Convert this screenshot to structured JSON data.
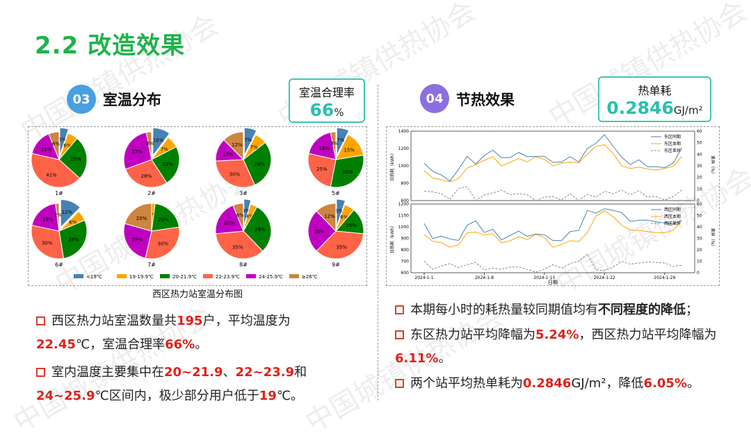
{
  "title": "2.2 改造效果",
  "watermark": "中国城镇供热协会",
  "left": {
    "badge": "03",
    "heading": "室温分布",
    "kpi": {
      "label": "室温合理率",
      "value": "66",
      "unit": "%"
    },
    "caption": "西区热力站室温分布图",
    "bullets": [
      {
        "parts": [
          [
            "西区热力站室温数量共",
            0
          ],
          [
            "195",
            1
          ],
          [
            "户，平均温度为",
            0
          ],
          [
            "22.45",
            1
          ],
          [
            "℃，室温合理率",
            0
          ],
          [
            "66%",
            1
          ],
          [
            "。",
            0
          ]
        ]
      },
      {
        "parts": [
          [
            "室内温度主要集中在",
            0
          ],
          [
            "20~21.9",
            1
          ],
          [
            "、",
            0
          ],
          [
            "22~23.9",
            1
          ],
          [
            "和",
            0
          ],
          [
            "24~25.9",
            1
          ],
          [
            "℃区间内，极少部分用户低于",
            0
          ],
          [
            "19",
            1
          ],
          [
            "℃。",
            0
          ]
        ]
      }
    ]
  },
  "right": {
    "badge": "04",
    "heading": "节热效果",
    "kpi": {
      "label": "热单耗",
      "value": "0.2846",
      "unit": "GJ/m²"
    },
    "bullets": [
      {
        "parts": [
          [
            "本期每小时的耗热量较同期值均有",
            0
          ],
          [
            "不同程度的降低",
            2
          ],
          [
            "；",
            0
          ]
        ]
      },
      {
        "parts": [
          [
            "东区热力站平均降幅为",
            0
          ],
          [
            "5.24%",
            1
          ],
          [
            "，西区热力站平均降幅为",
            0
          ],
          [
            "6.11%",
            1
          ],
          [
            "。",
            0
          ]
        ]
      },
      {
        "parts": [
          [
            "两个站平均热单耗为",
            0
          ],
          [
            "0.2846",
            1
          ],
          [
            "GJ/m²，降低",
            0
          ],
          [
            "6.05%",
            1
          ],
          [
            "。",
            0
          ]
        ]
      }
    ]
  },
  "colors": {
    "accent": "#1fb24a",
    "badge03": "#4a9fe0",
    "badge04": "#8b6fe0",
    "kpi": "#2bbfae",
    "red": "#e0201a"
  },
  "chart_data": [
    {
      "type": "pie",
      "title": "西区热力站室温分布图",
      "legend": [
        "<19℃",
        "19-19.9℃",
        "20-21.9℃",
        "22-23.9℃",
        "24-25.9℃",
        "≥26℃"
      ],
      "colors": [
        "#4682b4",
        "#ffa500",
        "#008000",
        "#ff6347",
        "#c000c0",
        "#cd853f"
      ],
      "pies": [
        {
          "name": "1#",
          "values": [
            5,
            6,
            25,
            41,
            15,
            6
          ]
        },
        {
          "name": "2#",
          "values": [
            10,
            7,
            23,
            28,
            27,
            3
          ]
        },
        {
          "name": "3#",
          "values": [
            7,
            7,
            28,
            30,
            13,
            12
          ]
        },
        {
          "name": "5#",
          "values": [
            7,
            15,
            30,
            25,
            18,
            3
          ]
        },
        {
          "name": "6#",
          "values": [
            12,
            6,
            28,
            30,
            19,
            2
          ]
        },
        {
          "name": "7#",
          "values": [
            0,
            2,
            20,
            30,
            25,
            20
          ]
        },
        {
          "name": "8#",
          "values": [
            4,
            4,
            29,
            35,
            20,
            6
          ]
        },
        {
          "name": "9#",
          "values": [
            5,
            6,
            15,
            35,
            25,
            12
          ]
        }
      ]
    },
    {
      "type": "line",
      "xlabel": "日期",
      "x_ticks": [
        "2024-1-1",
        "2024-1-8",
        "2024-1-15",
        "2024-1-22",
        "2024-1-29"
      ],
      "panels": [
        {
          "ylabel": "日热耗（kWh）",
          "y2label": "差异（%）",
          "ylim": [
            600,
            1400
          ],
          "yticks": [
            600,
            800,
            1000,
            1200,
            1400
          ],
          "y2lim": [
            0,
            60
          ],
          "y2ticks": [
            0,
            10,
            20,
            30,
            40,
            50,
            60
          ],
          "series": [
            {
              "name": "东区同期",
              "color": "#4682b4",
              "values": [
                1030,
                935,
                895,
                825,
                960,
                1110,
                1020,
                1120,
                1180,
                1095,
                1095,
                1155,
                1105,
                1110,
                1110,
                1040,
                1045,
                1105,
                1045,
                1200,
                1260,
                1360,
                1225,
                1100,
                1015,
                1070,
                990,
                990,
                980,
                1030,
                1210
              ]
            },
            {
              "name": "东区本期",
              "color": "#ffa500",
              "values": [
                945,
                860,
                840,
                815,
                855,
                975,
                1015,
                1065,
                1105,
                1000,
                1040,
                1085,
                1045,
                1105,
                1075,
                1000,
                1030,
                1045,
                1035,
                1135,
                1225,
                1245,
                1145,
                1000,
                970,
                985,
                965,
                950,
                970,
                995,
                1110
              ]
            },
            {
              "name": "东区差异",
              "color": "#888888",
              "dashed": true,
              "axis": "right",
              "values": [
                8,
                7.5,
                6,
                1,
                10.5,
                12,
                0,
                5,
                6.5,
                9,
                5,
                6,
                5,
                0,
                3,
                3.5,
                0.5,
                6,
                0,
                5.5,
                3,
                8,
                6,
                9,
                5,
                8.5,
                3,
                3.5,
                0.5,
                3.5,
                9
              ]
            }
          ]
        },
        {
          "ylabel": "日热耗（kWh）",
          "y2label": "差异（%）",
          "ylim": [
            600,
            1200
          ],
          "yticks": [
            600,
            700,
            800,
            900,
            1000,
            1100,
            1200
          ],
          "y2lim": [
            0,
            60
          ],
          "y2ticks": [
            0,
            10,
            20,
            30,
            40,
            50,
            60
          ],
          "series": [
            {
              "name": "西区同期",
              "color": "#4682b4",
              "values": [
                1030,
                898,
                920,
                895,
                882,
                1015,
                1053,
                952,
                980,
                887,
                925,
                963,
                918,
                938,
                932,
                881,
                881,
                960,
                970,
                1145,
                1120,
                1160,
                1145,
                1125,
                1048,
                1058,
                1060,
                1045,
                1035,
                1025,
                1060
              ]
            },
            {
              "name": "西区本期",
              "color": "#ffa500",
              "values": [
                932,
                875,
                862,
                822,
                845,
                948,
                955,
                930,
                940,
                862,
                878,
                915,
                890,
                935,
                908,
                823,
                846,
                880,
                873,
                952,
                1095,
                1140,
                1090,
                1015,
                975,
                970,
                960,
                950,
                950,
                970,
                1060
              ]
            },
            {
              "name": "西区差异",
              "color": "#888888",
              "dashed": true,
              "axis": "right",
              "values": [
                10,
                3,
                6,
                8,
                4.5,
                7,
                9,
                2.5,
                4,
                3,
                5,
                5,
                3,
                0.5,
                3,
                7,
                4,
                8,
                10,
                16.5,
                2.5,
                2,
                5,
                10,
                7.5,
                8.5,
                9.5,
                9,
                8.5,
                5.5,
                6.5
              ]
            }
          ]
        }
      ]
    }
  ]
}
